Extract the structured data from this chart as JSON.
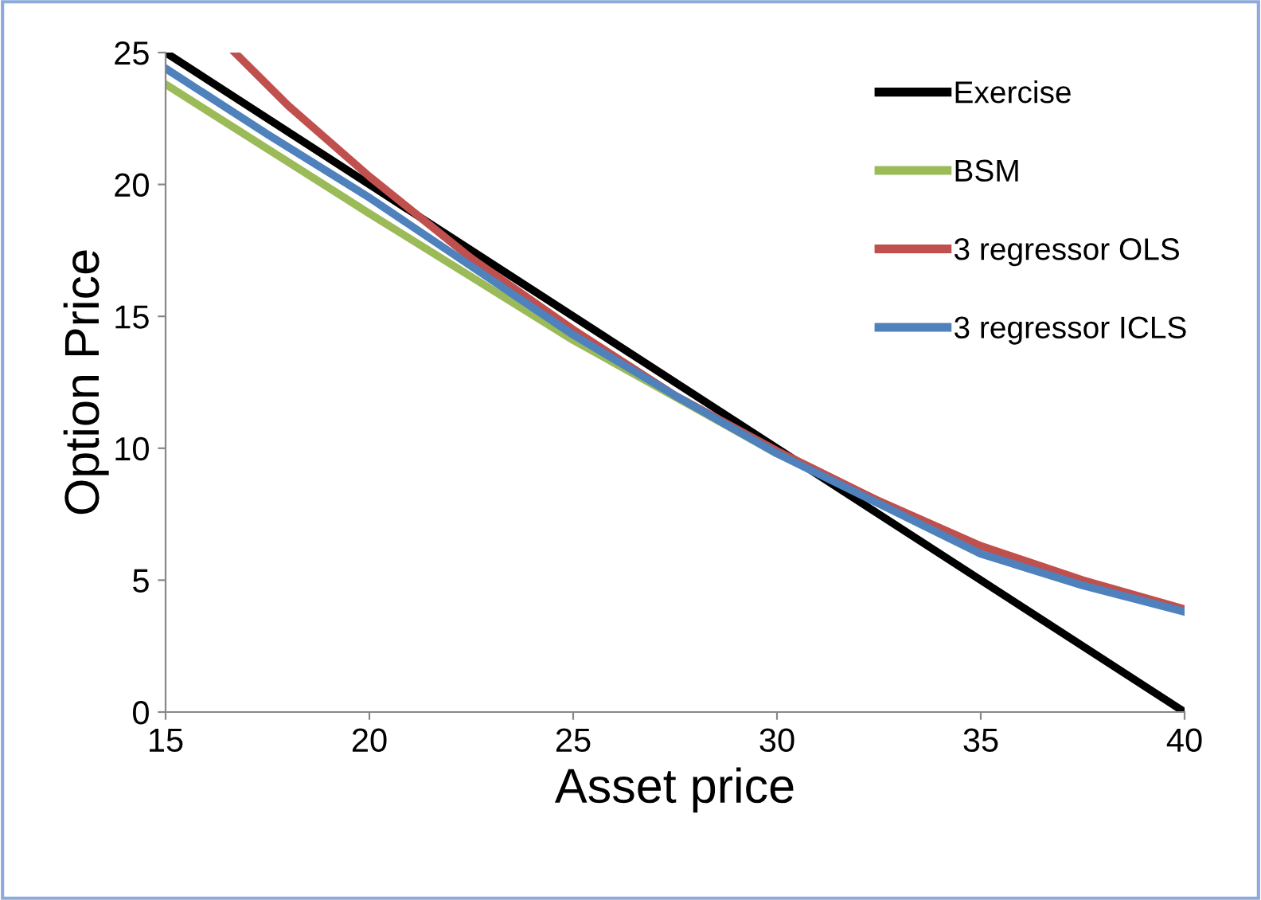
{
  "chart_data": {
    "type": "line",
    "xlabel": "Asset price",
    "ylabel": "Option Price",
    "xlim": [
      15,
      40
    ],
    "ylim": [
      0,
      25
    ],
    "xticks": [
      15,
      20,
      25,
      30,
      35,
      40
    ],
    "yticks": [
      0,
      5,
      10,
      15,
      20,
      25
    ],
    "grid": false,
    "legend": "top right",
    "marker": "none",
    "line_style": "solid",
    "series": [
      {
        "name": "Exercise",
        "color": "#000000",
        "x": [
          15,
          40
        ],
        "values": [
          25,
          0
        ]
      },
      {
        "name": "BSM",
        "color": "#9bbb59",
        "x": [
          15,
          20,
          25,
          30,
          32.5
        ],
        "values": [
          23.8,
          18.9,
          14.1,
          9.8,
          8.0
        ]
      },
      {
        "name": "3 regressor OLS",
        "color": "#c0504d",
        "x": [
          16.7,
          18,
          20,
          22.5,
          25,
          27.5,
          30,
          32.5,
          35,
          37.5,
          40
        ],
        "values": [
          25,
          23,
          20.3,
          17.2,
          14.5,
          12.0,
          9.9,
          8.0,
          6.3,
          5.0,
          3.9
        ]
      },
      {
        "name": "3 regressor ICLS",
        "color": "#4f81bd",
        "x": [
          15,
          17.5,
          20,
          22.5,
          25,
          27.5,
          30,
          32.5,
          35,
          37.5,
          40
        ],
        "values": [
          24.4,
          21.9,
          19.5,
          16.9,
          14.3,
          12.0,
          9.8,
          7.9,
          6.0,
          4.8,
          3.8
        ]
      }
    ]
  }
}
